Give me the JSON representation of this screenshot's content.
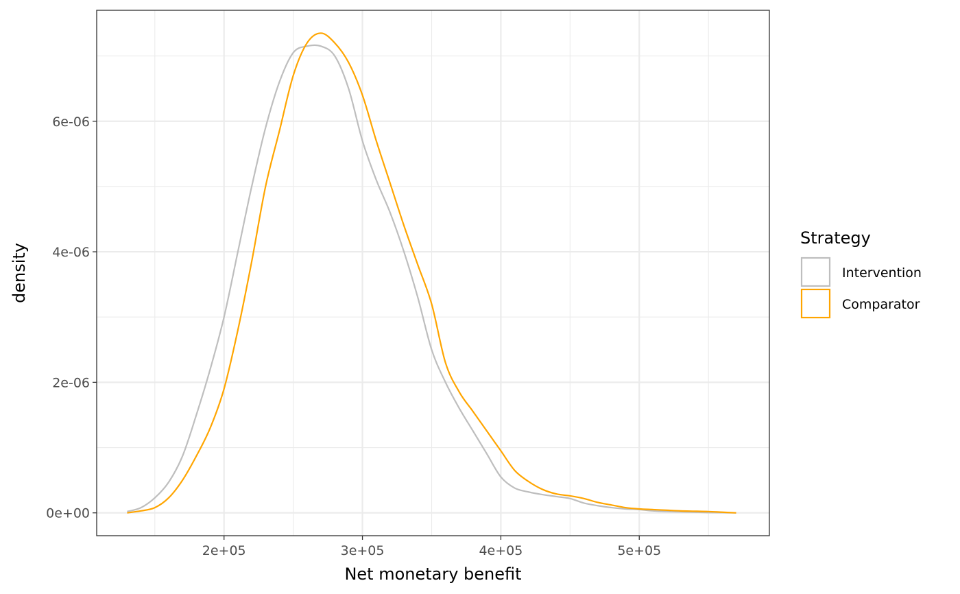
{
  "chart_data": {
    "type": "line",
    "xlabel": "Net monetary benefit",
    "ylabel": "density",
    "xlim": [
      108000,
      594000
    ],
    "ylim": [
      -3.5e-07,
      7.7e-06
    ],
    "x_ticks": [
      200000,
      300000,
      400000,
      500000
    ],
    "x_tick_labels": [
      "2e+05",
      "3e+05",
      "4e+05",
      "5e+05"
    ],
    "y_ticks": [
      0,
      2e-06,
      4e-06,
      6e-06
    ],
    "y_tick_labels": [
      "0e+00",
      "2e-06",
      "4e-06",
      "6e-06"
    ],
    "grid": true,
    "legend": {
      "title": "Strategy",
      "position": "right",
      "entries": [
        "Intervention",
        "Comparator"
      ]
    },
    "series": [
      {
        "name": "Intervention",
        "color": "#bebebe",
        "x": [
          130000,
          140000,
          150000,
          160000,
          170000,
          180000,
          190000,
          200000,
          210000,
          220000,
          230000,
          240000,
          250000,
          260000,
          270000,
          280000,
          290000,
          300000,
          310000,
          320000,
          330000,
          340000,
          350000,
          360000,
          370000,
          380000,
          390000,
          400000,
          410000,
          420000,
          430000,
          440000,
          450000,
          460000,
          470000,
          480000,
          490000,
          500000,
          510000,
          520000,
          530000,
          540000,
          550000,
          560000,
          570000
        ],
        "y": [
          2e-08,
          8e-08,
          2.3e-07,
          4.7e-07,
          8.7e-07,
          1.5e-06,
          2.2e-06,
          3e-06,
          4e-06,
          5e-06,
          5.9e-06,
          6.6e-06,
          7.05e-06,
          7.15e-06,
          7.15e-06,
          7e-06,
          6.5e-06,
          5.7e-06,
          5.1e-06,
          4.6e-06,
          4e-06,
          3.3e-06,
          2.5e-06,
          2e-06,
          1.6e-06,
          1.25e-06,
          9e-07,
          5.5e-07,
          3.8e-07,
          3.2e-07,
          2.8e-07,
          2.5e-07,
          2.2e-07,
          1.5e-07,
          1.1e-07,
          8e-08,
          6e-08,
          5e-08,
          3e-08,
          2e-08,
          1.5e-08,
          1e-08,
          5e-09,
          3e-09,
          0
        ]
      },
      {
        "name": "Comparator",
        "color": "#ffa500",
        "x": [
          130000,
          140000,
          150000,
          160000,
          170000,
          180000,
          190000,
          200000,
          210000,
          220000,
          230000,
          240000,
          250000,
          260000,
          270000,
          280000,
          290000,
          300000,
          310000,
          320000,
          330000,
          340000,
          350000,
          360000,
          370000,
          380000,
          390000,
          400000,
          410000,
          420000,
          430000,
          440000,
          450000,
          460000,
          470000,
          480000,
          490000,
          500000,
          510000,
          520000,
          530000,
          540000,
          550000,
          560000,
          570000
        ],
        "y": [
          0,
          3e-08,
          8e-08,
          2.3e-07,
          5e-07,
          8.7e-07,
          1.3e-06,
          1.9e-06,
          2.8e-06,
          3.85e-06,
          5e-06,
          5.85e-06,
          6.7e-06,
          7.2e-06,
          7.35e-06,
          7.2e-06,
          6.9e-06,
          6.4e-06,
          5.7e-06,
          5.05e-06,
          4.4e-06,
          3.8e-06,
          3.2e-06,
          2.3e-06,
          1.85e-06,
          1.55e-06,
          1.25e-06,
          9.5e-07,
          6.5e-07,
          4.8e-07,
          3.6e-07,
          2.9e-07,
          2.6e-07,
          2.2e-07,
          1.6e-07,
          1.2e-07,
          8e-08,
          6e-08,
          5e-08,
          4e-08,
          3e-08,
          2.5e-08,
          2e-08,
          1e-08,
          0
        ]
      }
    ]
  }
}
